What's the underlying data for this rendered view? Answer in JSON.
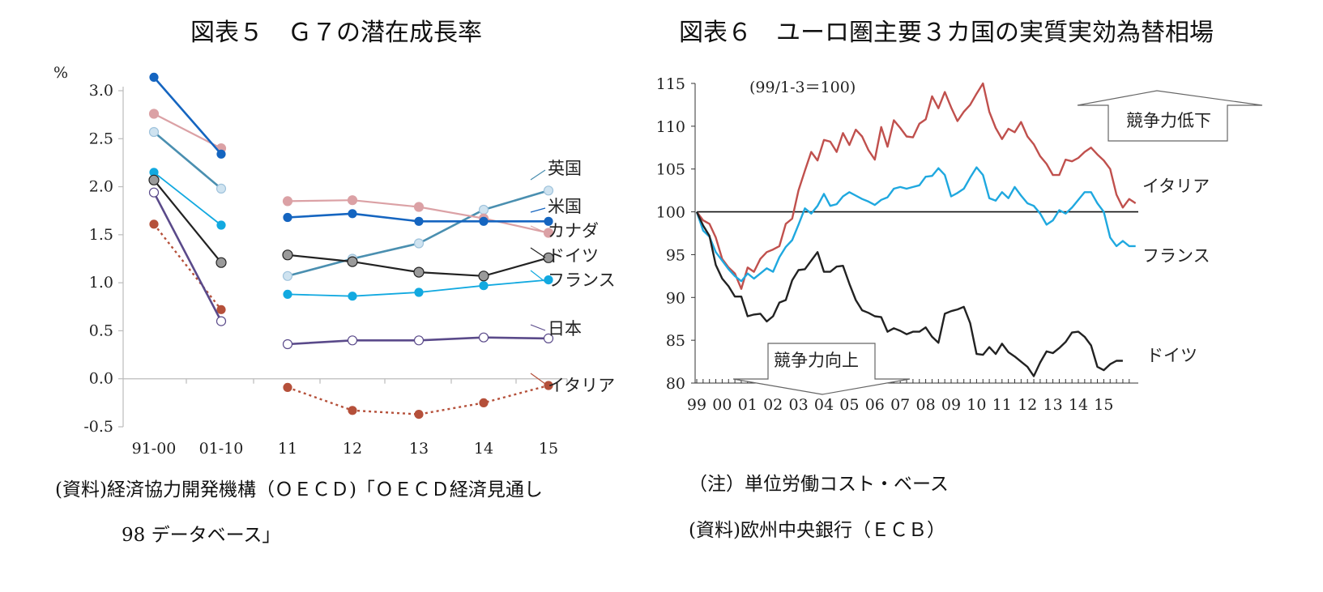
{
  "colors": {
    "uk": "#4a8fb0",
    "us": "#1565c0",
    "canada": "#dba1a5",
    "germany": "#222222",
    "france": "#12a9e0",
    "japan": "#5a4a8a",
    "italy": "#b5503a",
    "it_line": "#c0504d",
    "fr_line": "#1fa8df",
    "de_line": "#222222"
  },
  "chart_data": [
    {
      "type": "line",
      "title": "図表５　Ｇ７の潜在成長率",
      "ylabel": "%",
      "ylim": [
        -0.5,
        3.0
      ],
      "yticks": [
        "3.0",
        "2.5",
        "2.0",
        "1.5",
        "1.0",
        "0.5",
        "0.0",
        "-0.5"
      ],
      "categories": [
        "91-00",
        "01-10",
        "11",
        "12",
        "13",
        "14",
        "15"
      ],
      "series": [
        {
          "name": "英国",
          "values": [
            2.57,
            1.98,
            1.07,
            1.25,
            1.41,
            1.76,
            1.96
          ]
        },
        {
          "name": "米国",
          "values": [
            3.14,
            2.34,
            1.68,
            1.72,
            1.64,
            1.64,
            1.64
          ]
        },
        {
          "name": "カナダ",
          "values": [
            2.76,
            2.4,
            1.85,
            1.86,
            1.79,
            1.67,
            1.52
          ]
        },
        {
          "name": "ドイツ",
          "values": [
            2.07,
            1.21,
            1.29,
            1.22,
            1.11,
            1.07,
            1.26
          ]
        },
        {
          "name": "フランス",
          "values": [
            2.15,
            1.6,
            0.88,
            0.86,
            0.9,
            0.97,
            1.03
          ]
        },
        {
          "name": "日本",
          "values": [
            1.94,
            0.6,
            0.36,
            0.4,
            0.4,
            0.43,
            0.42
          ]
        },
        {
          "name": "イタリア",
          "values": [
            1.61,
            0.72,
            -0.09,
            -0.33,
            -0.37,
            -0.25,
            -0.07
          ]
        }
      ],
      "source": "(資料)経済協力開発機構（ＯＥＣＤ)「ＯＥＣＤ経済見通し",
      "source2": "98 データベース」"
    },
    {
      "type": "line",
      "title": "図表６　ユーロ圏主要３カ国の実質実効為替相場",
      "subtitle": "(99/1-3＝100)",
      "ylim": [
        80,
        115
      ],
      "yticks": [
        "115",
        "110",
        "105",
        "100",
        "95",
        "90",
        "85",
        "80"
      ],
      "xticks": [
        "99",
        "00",
        "01",
        "02",
        "03",
        "04",
        "05",
        "06",
        "07",
        "08",
        "09",
        "10",
        "11",
        "12",
        "13",
        "14",
        "15"
      ],
      "x_start": 1999.0,
      "x_step": 0.25,
      "annotation_up": "競争力低下",
      "annotation_down": "競争力向上",
      "series": [
        {
          "name": "イタリア",
          "values": [
            100,
            99.0,
            98.6,
            97.0,
            94.5,
            93.5,
            92.8,
            91.0,
            93.5,
            93.0,
            94.5,
            95.3,
            95.6,
            96.0,
            98.6,
            99.2,
            102.5,
            104.8,
            107.0,
            106.0,
            108.4,
            108.2,
            107.0,
            109.2,
            107.8,
            109.6,
            108.8,
            107.2,
            106.1,
            109.9,
            107.6,
            110.7,
            109.8,
            108.8,
            108.7,
            110.3,
            110.8,
            113.5,
            112.1,
            114.0,
            112.2,
            110.6,
            111.7,
            112.5,
            113.8,
            115.0,
            111.7,
            109.8,
            108.5,
            109.7,
            109.3,
            110.5,
            108.8,
            107.9,
            106.5,
            105.6,
            104.3,
            104.3,
            106.1,
            105.9,
            106.3,
            107.0,
            107.5,
            106.7,
            106.0,
            105.0,
            102.0,
            100.5,
            101.5,
            101.0
          ]
        },
        {
          "name": "フランス",
          "values": [
            100,
            97.8,
            97.1,
            95.3,
            94.3,
            93.3,
            92.5,
            91.9,
            92.8,
            92.2,
            92.8,
            93.4,
            93.0,
            94.7,
            95.9,
            96.7,
            98.5,
            100.4,
            99.8,
            100.7,
            102.1,
            100.7,
            100.9,
            101.8,
            102.3,
            101.9,
            101.5,
            101.2,
            100.8,
            101.4,
            101.7,
            102.7,
            102.9,
            102.7,
            102.9,
            103.1,
            104.1,
            104.2,
            105.1,
            104.3,
            101.8,
            102.2,
            102.7,
            104.0,
            105.2,
            104.3,
            101.6,
            101.3,
            102.3,
            101.6,
            102.9,
            101.9,
            101.0,
            100.7,
            99.8,
            98.5,
            99.0,
            100.2,
            99.8,
            100.5,
            101.4,
            102.3,
            102.3,
            101.0,
            100.0,
            97.0,
            96.0,
            96.6,
            96.0,
            96.0
          ]
        },
        {
          "name": "ドイツ",
          "values": [
            100,
            98.4,
            97.2,
            93.8,
            92.2,
            91.3,
            90.1,
            90.1,
            87.8,
            88.0,
            88.1,
            87.2,
            87.8,
            89.4,
            89.7,
            92.0,
            93.2,
            93.3,
            94.3,
            95.3,
            93.0,
            93.0,
            93.6,
            93.7,
            91.6,
            89.7,
            88.5,
            88.2,
            87.8,
            87.7,
            86.0,
            86.4,
            86.1,
            85.7,
            86.0,
            86.0,
            86.5,
            85.4,
            84.7,
            88.1,
            88.4,
            88.6,
            88.9,
            87.0,
            83.4,
            83.3,
            84.2,
            83.4,
            84.6,
            83.6,
            83.1,
            82.5,
            81.9,
            80.8,
            82.4,
            83.7,
            83.5,
            84.1,
            84.8,
            85.9,
            86.0,
            85.4,
            84.4,
            81.9,
            81.5,
            82.2,
            82.6,
            82.6
          ]
        }
      ],
      "note": "（注）単位労働コスト・ベース",
      "source": "(資料)欧州中央銀行（ＥＣＢ）"
    }
  ]
}
